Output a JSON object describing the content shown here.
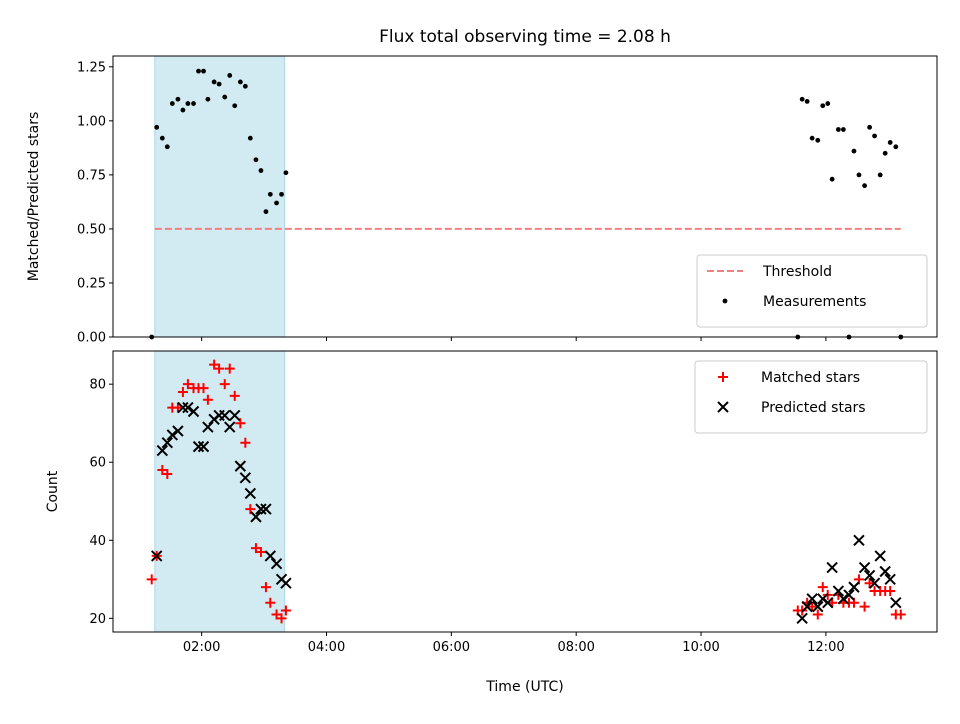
{
  "chart_data": {
    "title": "Flux total observing time = 2.08 h",
    "xlabel": "Time (UTC)",
    "x_ticks": [
      "02:00",
      "04:00",
      "06:00",
      "08:00",
      "10:00",
      "12:00"
    ],
    "x_tick_hours": [
      2,
      4,
      6,
      8,
      10,
      12
    ],
    "xlim_hours": [
      0.58,
      13.78
    ],
    "highlight_span_hours": [
      1.25,
      3.33
    ],
    "highlight_color": "#add8e6",
    "panels": [
      {
        "type": "scatter",
        "ylabel": "Matched/Predicted stars",
        "ylim": [
          0.0,
          1.3
        ],
        "y_ticks": [
          0.0,
          0.25,
          0.5,
          0.75,
          1.0,
          1.25
        ],
        "y_tick_labels": [
          "0.00",
          "0.25",
          "0.50",
          "0.75",
          "1.00",
          "1.25"
        ],
        "legend_position": "lower-right",
        "threshold": {
          "name": "Threshold",
          "value": 0.5,
          "x_range_hours": [
            1.25,
            13.2
          ],
          "color": "#f08080"
        },
        "series": [
          {
            "name": "Measurements",
            "color": "#000000",
            "marker": "dot",
            "points": [
              [
                1.2,
                0.0
              ],
              [
                1.28,
                0.97
              ],
              [
                1.37,
                0.92
              ],
              [
                1.45,
                0.88
              ],
              [
                1.53,
                1.08
              ],
              [
                1.62,
                1.1
              ],
              [
                1.7,
                1.05
              ],
              [
                1.78,
                1.08
              ],
              [
                1.87,
                1.08
              ],
              [
                1.95,
                1.23
              ],
              [
                2.03,
                1.23
              ],
              [
                2.1,
                1.1
              ],
              [
                2.2,
                1.18
              ],
              [
                2.28,
                1.17
              ],
              [
                2.37,
                1.11
              ],
              [
                2.45,
                1.21
              ],
              [
                2.53,
                1.07
              ],
              [
                2.62,
                1.18
              ],
              [
                2.7,
                1.16
              ],
              [
                2.78,
                0.92
              ],
              [
                2.87,
                0.82
              ],
              [
                2.95,
                0.77
              ],
              [
                3.03,
                0.58
              ],
              [
                3.1,
                0.66
              ],
              [
                3.2,
                0.62
              ],
              [
                3.28,
                0.66
              ],
              [
                3.35,
                0.76
              ],
              [
                11.55,
                0.0
              ],
              [
                11.62,
                1.1
              ],
              [
                11.7,
                1.09
              ],
              [
                11.78,
                0.92
              ],
              [
                11.87,
                0.91
              ],
              [
                11.95,
                1.07
              ],
              [
                12.03,
                1.08
              ],
              [
                12.1,
                0.73
              ],
              [
                12.2,
                0.96
              ],
              [
                12.28,
                0.96
              ],
              [
                12.37,
                0.0
              ],
              [
                12.45,
                0.86
              ],
              [
                12.53,
                0.75
              ],
              [
                12.62,
                0.7
              ],
              [
                12.7,
                0.97
              ],
              [
                12.78,
                0.93
              ],
              [
                12.87,
                0.75
              ],
              [
                12.95,
                0.85
              ],
              [
                13.03,
                0.9
              ],
              [
                13.12,
                0.88
              ],
              [
                13.2,
                0.0
              ]
            ]
          }
        ]
      },
      {
        "type": "scatter",
        "ylabel": "Count",
        "ylim": [
          16.5,
          88.5
        ],
        "y_ticks": [
          20,
          40,
          60,
          80
        ],
        "y_tick_labels": [
          "20",
          "40",
          "60",
          "80"
        ],
        "legend_position": "top-right",
        "series": [
          {
            "name": "Matched stars",
            "color": "#ff0000",
            "marker": "plus",
            "points": [
              [
                1.2,
                30
              ],
              [
                1.28,
                36
              ],
              [
                1.37,
                58
              ],
              [
                1.45,
                57
              ],
              [
                1.53,
                74
              ],
              [
                1.62,
                74
              ],
              [
                1.7,
                78
              ],
              [
                1.78,
                80
              ],
              [
                1.87,
                79
              ],
              [
                1.95,
                79
              ],
              [
                2.03,
                79
              ],
              [
                2.1,
                76
              ],
              [
                2.2,
                85
              ],
              [
                2.28,
                84
              ],
              [
                2.37,
                80
              ],
              [
                2.45,
                84
              ],
              [
                2.53,
                77
              ],
              [
                2.62,
                70
              ],
              [
                2.7,
                65
              ],
              [
                2.78,
                48
              ],
              [
                2.87,
                38
              ],
              [
                2.95,
                37
              ],
              [
                3.03,
                28
              ],
              [
                3.1,
                24
              ],
              [
                3.2,
                21
              ],
              [
                3.28,
                20
              ],
              [
                3.35,
                22
              ],
              [
                11.55,
                22
              ],
              [
                11.62,
                22
              ],
              [
                11.7,
                24
              ],
              [
                11.78,
                23
              ],
              [
                11.87,
                21
              ],
              [
                11.95,
                28
              ],
              [
                12.03,
                26
              ],
              [
                12.1,
                24
              ],
              [
                12.2,
                26
              ],
              [
                12.28,
                24
              ],
              [
                12.37,
                24
              ],
              [
                12.45,
                24
              ],
              [
                12.53,
                30
              ],
              [
                12.62,
                23
              ],
              [
                12.7,
                29
              ],
              [
                12.78,
                27
              ],
              [
                12.87,
                27
              ],
              [
                12.95,
                27
              ],
              [
                13.03,
                27
              ],
              [
                13.12,
                21
              ],
              [
                13.2,
                21
              ]
            ]
          },
          {
            "name": "Predicted stars",
            "color": "#000000",
            "marker": "x",
            "points": [
              [
                1.28,
                36
              ],
              [
                1.37,
                63
              ],
              [
                1.45,
                65
              ],
              [
                1.53,
                67
              ],
              [
                1.62,
                68
              ],
              [
                1.7,
                74
              ],
              [
                1.78,
                74
              ],
              [
                1.87,
                73
              ],
              [
                1.95,
                64
              ],
              [
                2.03,
                64
              ],
              [
                2.1,
                69
              ],
              [
                2.2,
                71
              ],
              [
                2.28,
                72
              ],
              [
                2.37,
                72
              ],
              [
                2.45,
                69
              ],
              [
                2.53,
                72
              ],
              [
                2.62,
                59
              ],
              [
                2.7,
                56
              ],
              [
                2.78,
                52
              ],
              [
                2.87,
                46
              ],
              [
                2.95,
                48
              ],
              [
                3.03,
                48
              ],
              [
                3.1,
                36
              ],
              [
                3.2,
                34
              ],
              [
                3.28,
                30
              ],
              [
                3.35,
                29
              ],
              [
                11.62,
                20
              ],
              [
                11.7,
                23
              ],
              [
                11.78,
                25
              ],
              [
                11.87,
                23
              ],
              [
                11.95,
                25
              ],
              [
                12.03,
                24
              ],
              [
                12.1,
                33
              ],
              [
                12.2,
                27
              ],
              [
                12.28,
                25
              ],
              [
                12.37,
                26
              ],
              [
                12.45,
                28
              ],
              [
                12.53,
                40
              ],
              [
                12.62,
                33
              ],
              [
                12.7,
                31
              ],
              [
                12.78,
                29
              ],
              [
                12.87,
                36
              ],
              [
                12.95,
                32
              ],
              [
                13.03,
                30
              ],
              [
                13.12,
                24
              ]
            ]
          }
        ]
      }
    ]
  }
}
